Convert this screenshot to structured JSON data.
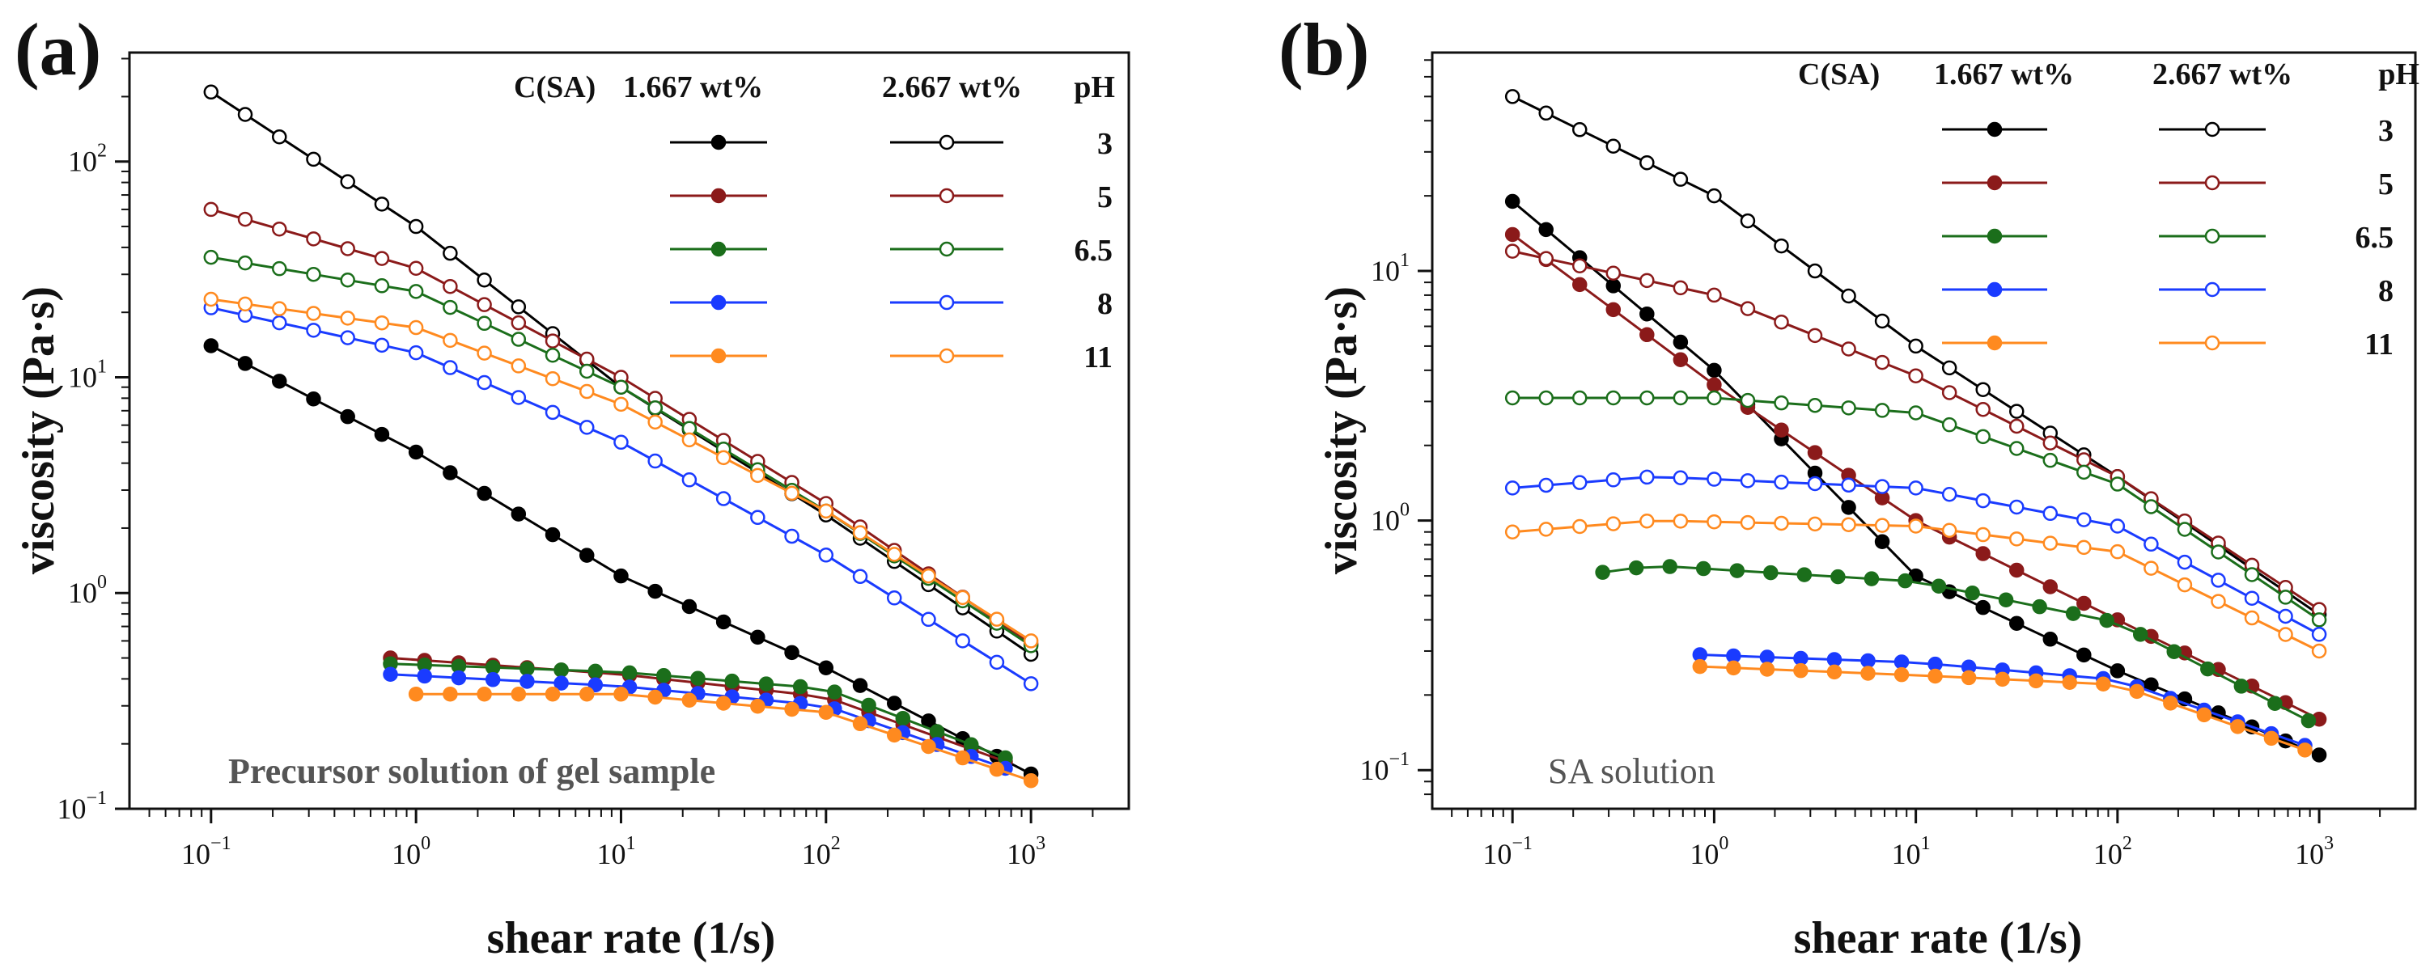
{
  "chart_data": [
    {
      "panel": "(a)",
      "type": "line",
      "xscale": "log",
      "yscale": "log",
      "xlabel": "shear rate (1/s)",
      "ylabel": "viscosity (Pa·s)",
      "xlim": [
        0.04,
        3000
      ],
      "ylim": [
        0.1,
        320
      ],
      "xticks": [
        "10",
        "10",
        "10",
        "10",
        "10"
      ],
      "xtick_exponents": [
        "−1",
        "0",
        "1",
        "2",
        "3"
      ],
      "yticks": [
        "10",
        "10",
        "10",
        "10"
      ],
      "ytick_exponents": [
        "−1",
        "0",
        "1",
        "2"
      ],
      "annotation": "Precursor solution of gel sample",
      "legend": {
        "header": [
          "C(SA)",
          "1.667 wt%",
          "2.667 wt%",
          "pH"
        ],
        "rows": [
          "3",
          "5",
          "6.5",
          "8",
          "11"
        ]
      },
      "series": [
        {
          "color": "#000000",
          "filled": true,
          "x_range": [
            0.1,
            1000
          ],
          "anchors": [
            [
              0.1,
              14
            ],
            [
              1,
              4.5
            ],
            [
              10,
              1.2
            ],
            [
              100,
              0.45
            ],
            [
              1000,
              0.145
            ]
          ]
        },
        {
          "color": "#8b1a1a",
          "filled": true,
          "x_range": [
            0.75,
            1000
          ],
          "anchors": [
            [
              0.75,
              0.5
            ],
            [
              10,
              0.42
            ],
            [
              100,
              0.33
            ],
            [
              1000,
              0.15
            ]
          ]
        },
        {
          "color": "#1b6e1b",
          "filled": true,
          "x_range": [
            0.75,
            1000
          ],
          "anchors": [
            [
              0.75,
              0.47
            ],
            [
              10,
              0.43
            ],
            [
              100,
              0.36
            ],
            [
              1000,
              0.155
            ]
          ]
        },
        {
          "color": "#1a3bff",
          "filled": true,
          "x_range": [
            0.75,
            1000
          ],
          "anchors": [
            [
              0.75,
              0.42
            ],
            [
              10,
              0.37
            ],
            [
              100,
              0.3
            ],
            [
              1000,
              0.14
            ]
          ]
        },
        {
          "color": "#ff8a1f",
          "filled": true,
          "x_range": [
            1,
            1000
          ],
          "anchors": [
            [
              1,
              0.34
            ],
            [
              10,
              0.34
            ],
            [
              100,
              0.28
            ],
            [
              1000,
              0.135
            ]
          ]
        },
        {
          "color": "#000000",
          "filled": false,
          "x_range": [
            0.1,
            1000
          ],
          "anchors": [
            [
              0.1,
              210
            ],
            [
              1,
              50
            ],
            [
              10,
              9
            ],
            [
              100,
              2.3
            ],
            [
              1000,
              0.52
            ]
          ]
        },
        {
          "color": "#8b1a1a",
          "filled": false,
          "x_range": [
            0.1,
            1000
          ],
          "anchors": [
            [
              0.1,
              60
            ],
            [
              1,
              32
            ],
            [
              10,
              10
            ],
            [
              100,
              2.6
            ],
            [
              1000,
              0.58
            ]
          ]
        },
        {
          "color": "#1b6e1b",
          "filled": false,
          "x_range": [
            0.1,
            1000
          ],
          "anchors": [
            [
              0.1,
              36
            ],
            [
              1,
              25
            ],
            [
              10,
              9
            ],
            [
              100,
              2.4
            ],
            [
              1000,
              0.57
            ]
          ]
        },
        {
          "color": "#1a3bff",
          "filled": false,
          "x_range": [
            0.1,
            1000
          ],
          "anchors": [
            [
              0.1,
              21
            ],
            [
              1,
              13
            ],
            [
              10,
              5
            ],
            [
              100,
              1.5
            ],
            [
              1000,
              0.38
            ]
          ]
        },
        {
          "color": "#ff8a1f",
          "filled": false,
          "x_range": [
            0.1,
            1000
          ],
          "anchors": [
            [
              0.1,
              23
            ],
            [
              1,
              17
            ],
            [
              10,
              7.5
            ],
            [
              100,
              2.4
            ],
            [
              1000,
              0.6
            ]
          ]
        }
      ]
    },
    {
      "panel": "(b)",
      "type": "line",
      "xscale": "log",
      "yscale": "log",
      "xlabel": "shear rate (1/s)",
      "ylabel": "viscosity (Pa·s)",
      "xlim": [
        0.04,
        3000
      ],
      "ylim": [
        0.07,
        75
      ],
      "xticks": [
        "10",
        "10",
        "10",
        "10",
        "10"
      ],
      "xtick_exponents": [
        "−1",
        "0",
        "1",
        "2",
        "3"
      ],
      "yticks": [
        "10",
        "10",
        "10"
      ],
      "ytick_exponents": [
        "−1",
        "0",
        "1"
      ],
      "annotation": "SA solution",
      "legend": {
        "header": [
          "C(SA)",
          "1.667 wt%",
          "2.667 wt%",
          "pH"
        ],
        "rows": [
          "3",
          "5",
          "6.5",
          "8",
          "11"
        ]
      },
      "series": [
        {
          "color": "#000000",
          "filled": true,
          "x_range": [
            0.1,
            1000
          ],
          "anchors": [
            [
              0.1,
              19
            ],
            [
              1,
              4
            ],
            [
              10,
              0.6
            ],
            [
              100,
              0.25
            ],
            [
              1000,
              0.115
            ]
          ]
        },
        {
          "color": "#8b1a1a",
          "filled": true,
          "x_range": [
            0.1,
            1000
          ],
          "anchors": [
            [
              0.1,
              14
            ],
            [
              1,
              3.5
            ],
            [
              10,
              1.0
            ],
            [
              100,
              0.4
            ],
            [
              1000,
              0.16
            ]
          ]
        },
        {
          "color": "#1b6e1b",
          "filled": true,
          "x_range": [
            0.28,
            1000
          ],
          "anchors": [
            [
              0.28,
              0.62
            ],
            [
              0.5,
              0.66
            ],
            [
              10,
              0.57
            ],
            [
              100,
              0.39
            ],
            [
              1000,
              0.15
            ]
          ]
        },
        {
          "color": "#1a3bff",
          "filled": true,
          "x_range": [
            0.85,
            1000
          ],
          "anchors": [
            [
              0.85,
              0.29
            ],
            [
              10,
              0.27
            ],
            [
              100,
              0.23
            ],
            [
              1000,
              0.12
            ]
          ]
        },
        {
          "color": "#ff8a1f",
          "filled": true,
          "x_range": [
            0.85,
            1000
          ],
          "anchors": [
            [
              0.85,
              0.26
            ],
            [
              10,
              0.24
            ],
            [
              100,
              0.22
            ],
            [
              1000,
              0.115
            ]
          ]
        },
        {
          "color": "#000000",
          "filled": false,
          "x_range": [
            0.1,
            1000
          ],
          "anchors": [
            [
              0.1,
              50
            ],
            [
              1,
              20
            ],
            [
              10,
              5
            ],
            [
              100,
              1.5
            ],
            [
              1000,
              0.42
            ]
          ]
        },
        {
          "color": "#8b1a1a",
          "filled": false,
          "x_range": [
            0.1,
            1000
          ],
          "anchors": [
            [
              0.1,
              12
            ],
            [
              1,
              8
            ],
            [
              10,
              3.8
            ],
            [
              100,
              1.5
            ],
            [
              1000,
              0.44
            ]
          ]
        },
        {
          "color": "#1b6e1b",
          "filled": false,
          "x_range": [
            0.1,
            1000
          ],
          "anchors": [
            [
              0.1,
              3.1
            ],
            [
              1,
              3.1
            ],
            [
              10,
              2.7
            ],
            [
              100,
              1.4
            ],
            [
              1000,
              0.4
            ]
          ]
        },
        {
          "color": "#1a3bff",
          "filled": false,
          "x_range": [
            0.1,
            1000
          ],
          "anchors": [
            [
              0.1,
              1.35
            ],
            [
              0.5,
              1.5
            ],
            [
              10,
              1.35
            ],
            [
              100,
              0.95
            ],
            [
              1000,
              0.35
            ]
          ]
        },
        {
          "color": "#ff8a1f",
          "filled": false,
          "x_range": [
            0.1,
            1000
          ],
          "anchors": [
            [
              0.1,
              0.9
            ],
            [
              0.5,
              1.0
            ],
            [
              10,
              0.95
            ],
            [
              100,
              0.75
            ],
            [
              1000,
              0.3
            ]
          ]
        }
      ]
    }
  ]
}
